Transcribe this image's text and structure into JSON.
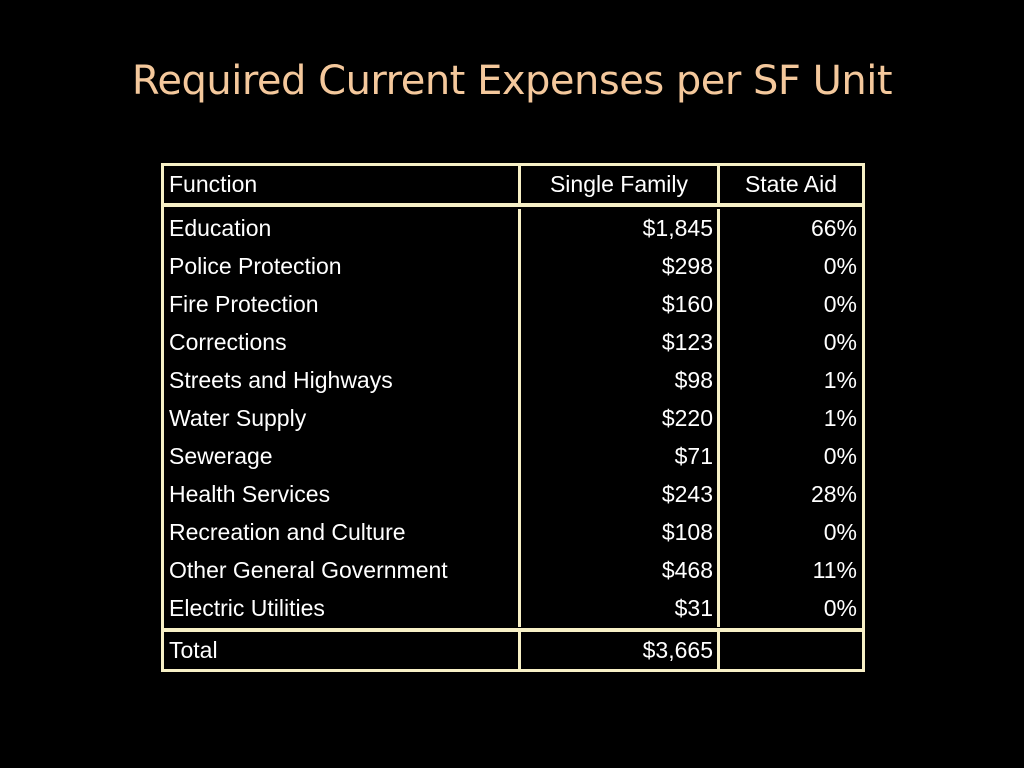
{
  "title": "Required Current Expenses per SF Unit",
  "table": {
    "headers": [
      "Function",
      "Single Family",
      "State Aid"
    ],
    "rows": [
      [
        "Education",
        "$1,845",
        "66%"
      ],
      [
        "Police Protection",
        "$298",
        "0%"
      ],
      [
        "Fire Protection",
        "$160",
        "0%"
      ],
      [
        "Corrections",
        "$123",
        "0%"
      ],
      [
        "Streets and Highways",
        "$98",
        "1%"
      ],
      [
        "Water Supply",
        "$220",
        "1%"
      ],
      [
        "Sewerage",
        "$71",
        "0%"
      ],
      [
        "Health Services",
        "$243",
        "28%"
      ],
      [
        "Recreation and Culture",
        "$108",
        "0%"
      ],
      [
        "Other General Government",
        "$468",
        "11%"
      ],
      [
        "Electric Utilities",
        "$31",
        "0%"
      ]
    ],
    "total": [
      "Total",
      "$3,665",
      ""
    ]
  },
  "colors": {
    "background": "#000000",
    "title": "#f4c89c",
    "border": "#f7f0c6",
    "text": "#ffffff"
  }
}
